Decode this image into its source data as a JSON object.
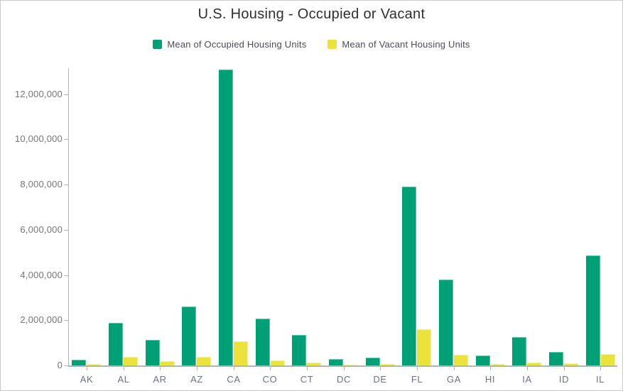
{
  "chart_data": {
    "type": "bar",
    "title": "U.S. Housing - Occupied or Vacant",
    "categories": [
      "AK",
      "AL",
      "AR",
      "AZ",
      "CA",
      "CO",
      "CT",
      "DC",
      "DE",
      "FL",
      "GA",
      "HI",
      "IA",
      "ID",
      "IL"
    ],
    "series": [
      {
        "name": "Mean of Occupied Housing Units",
        "color": "#00a077",
        "stroke": "#5fc6a4",
        "values": [
          240000,
          1870000,
          1140000,
          2590000,
          13100000,
          2080000,
          1360000,
          270000,
          350000,
          7920000,
          3800000,
          450000,
          1250000,
          610000,
          4870000
        ]
      },
      {
        "name": "Mean of Vacant Housing Units",
        "color": "#ece23c",
        "stroke": "#f4efa0",
        "values": [
          60000,
          370000,
          180000,
          370000,
          1080000,
          210000,
          110000,
          30000,
          50000,
          1590000,
          470000,
          70000,
          130000,
          80000,
          490000
        ]
      }
    ],
    "xlabel": "",
    "ylabel": "",
    "ylim": [
      0,
      13200000
    ],
    "y_ticks": [
      0,
      2000000,
      4000000,
      6000000,
      8000000,
      10000000,
      12000000
    ],
    "y_tick_labels": [
      "0",
      "2,000,000",
      "4,000,000",
      "6,000,000",
      "8,000,000",
      "10,000,000",
      "12,000,000"
    ],
    "grid": false,
    "legend_position": "top"
  }
}
